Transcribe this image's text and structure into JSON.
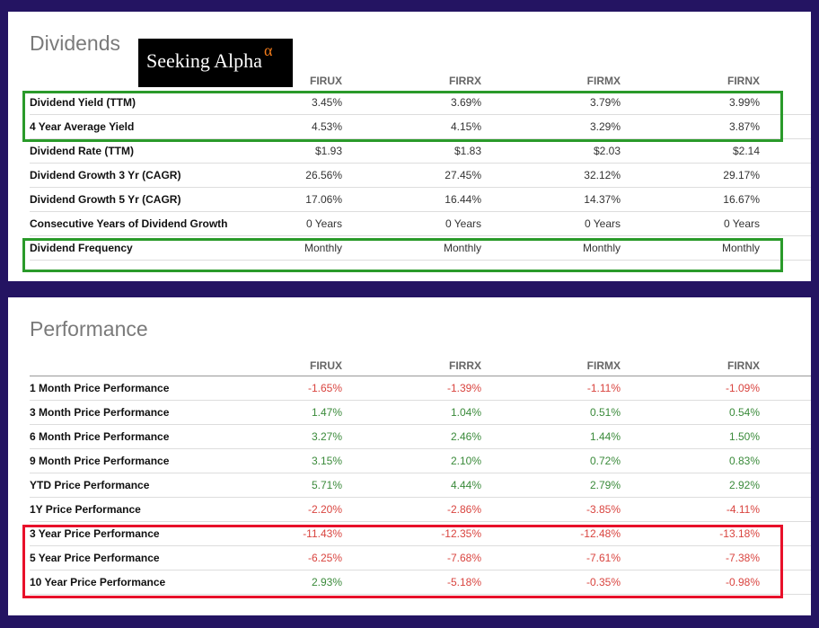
{
  "dividends": {
    "title": "Dividends",
    "logo_text": "Seeking Alpha α",
    "columns": [
      "FIRUX",
      "FIRRX",
      "FIRMX",
      "FIRNX"
    ],
    "rows": [
      {
        "label": "Dividend Yield (TTM)",
        "values": [
          "3.45%",
          "3.69%",
          "3.79%",
          "3.99%"
        ]
      },
      {
        "label": "4 Year Average Yield",
        "values": [
          "4.53%",
          "4.15%",
          "3.29%",
          "3.87%"
        ]
      },
      {
        "label": "Dividend Rate (TTM)",
        "values": [
          "$1.93",
          "$1.83",
          "$2.03",
          "$2.14"
        ]
      },
      {
        "label": "Dividend Growth 3 Yr (CAGR)",
        "values": [
          "26.56%",
          "27.45%",
          "32.12%",
          "29.17%"
        ]
      },
      {
        "label": "Dividend Growth 5 Yr (CAGR)",
        "values": [
          "17.06%",
          "16.44%",
          "14.37%",
          "16.67%"
        ]
      },
      {
        "label": "Consecutive Years of Dividend Growth",
        "values": [
          "0 Years",
          "0 Years",
          "0 Years",
          "0 Years"
        ]
      },
      {
        "label": "Dividend Frequency",
        "values": [
          "Monthly",
          "Monthly",
          "Monthly",
          "Monthly"
        ]
      }
    ],
    "highlight_color": "#2a9a2a"
  },
  "performance": {
    "title": "Performance",
    "columns": [
      "FIRUX",
      "FIRRX",
      "FIRMX",
      "FIRNX"
    ],
    "rows": [
      {
        "label": "1 Month Price Performance",
        "values": [
          "-1.65%",
          "-1.39%",
          "-1.11%",
          "-1.09%"
        ]
      },
      {
        "label": "3 Month Price Performance",
        "values": [
          "1.47%",
          "1.04%",
          "0.51%",
          "0.54%"
        ]
      },
      {
        "label": "6 Month Price Performance",
        "values": [
          "3.27%",
          "2.46%",
          "1.44%",
          "1.50%"
        ]
      },
      {
        "label": "9 Month Price Performance",
        "values": [
          "3.15%",
          "2.10%",
          "0.72%",
          "0.83%"
        ]
      },
      {
        "label": "YTD Price Performance",
        "values": [
          "5.71%",
          "4.44%",
          "2.79%",
          "2.92%"
        ]
      },
      {
        "label": "1Y Price Performance",
        "values": [
          "-2.20%",
          "-2.86%",
          "-3.85%",
          "-4.11%"
        ]
      },
      {
        "label": "3 Year Price Performance",
        "values": [
          "-11.43%",
          "-12.35%",
          "-12.48%",
          "-13.18%"
        ]
      },
      {
        "label": "5 Year Price Performance",
        "values": [
          "-6.25%",
          "-7.68%",
          "-7.61%",
          "-7.38%"
        ]
      },
      {
        "label": "10 Year Price Performance",
        "values": [
          "2.93%",
          "-5.18%",
          "-0.35%",
          "-0.98%"
        ]
      }
    ],
    "positive_color": "#3a8a3a",
    "negative_color": "#d9443f",
    "highlight_color": "#e8102a"
  }
}
